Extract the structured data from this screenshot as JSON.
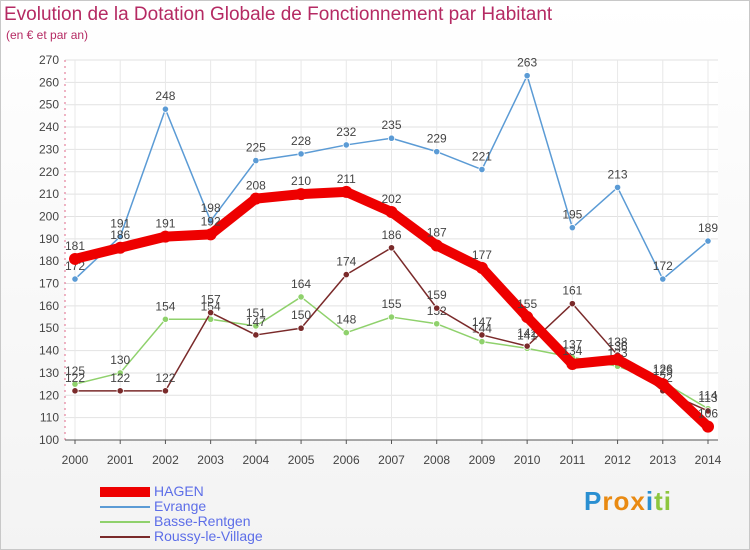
{
  "header": {
    "title": "Evolution de la Dotation Globale de Fonctionnement par Habitant",
    "subtitle": "(en € et par an)"
  },
  "brand": {
    "letters": [
      "P",
      "r",
      "o",
      "x",
      "i",
      "t",
      "i"
    ],
    "colors": [
      "#2a8fd1",
      "#e98a12",
      "#e98a12",
      "#e98a12",
      "#2a8fd1",
      "#8dc63f",
      "#8dc63f"
    ]
  },
  "chart_data": {
    "type": "line",
    "x": [
      2000,
      2001,
      2002,
      2003,
      2004,
      2005,
      2006,
      2007,
      2008,
      2009,
      2010,
      2011,
      2012,
      2013,
      2014
    ],
    "ylim": [
      100,
      270
    ],
    "yticks": [
      100,
      110,
      120,
      130,
      140,
      150,
      160,
      170,
      180,
      190,
      200,
      210,
      220,
      230,
      240,
      250,
      260,
      270
    ],
    "grid": true,
    "legend_position": "bottom-left",
    "series": [
      {
        "name": "Evrange",
        "color": "#5b9bd5",
        "values": [
          172,
          191,
          248,
          198,
          225,
          228,
          232,
          235,
          229,
          221,
          263,
          195,
          213,
          172,
          189
        ]
      },
      {
        "name": "Basse-Rentgen",
        "color": "#8fd16c",
        "values": [
          125,
          130,
          154,
          154,
          151,
          164,
          148,
          155,
          152,
          144,
          141,
          137,
          133,
          126,
          114
        ]
      },
      {
        "name": "Roussy-le-Village",
        "color": "#7a2a2a",
        "values": [
          122,
          122,
          122,
          157,
          147,
          150,
          174,
          186,
          159,
          147,
          142,
          161,
          138,
          122,
          113
        ]
      },
      {
        "name": "HAGEN",
        "color": "#ee0000",
        "values": [
          181,
          186,
          191,
          192,
          208,
          210,
          211,
          202,
          187,
          177,
          155,
          134,
          136,
          125,
          106
        ]
      }
    ],
    "legend": [
      "HAGEN",
      "Evrange",
      "Basse-Rentgen",
      "Roussy-le-Village"
    ]
  }
}
